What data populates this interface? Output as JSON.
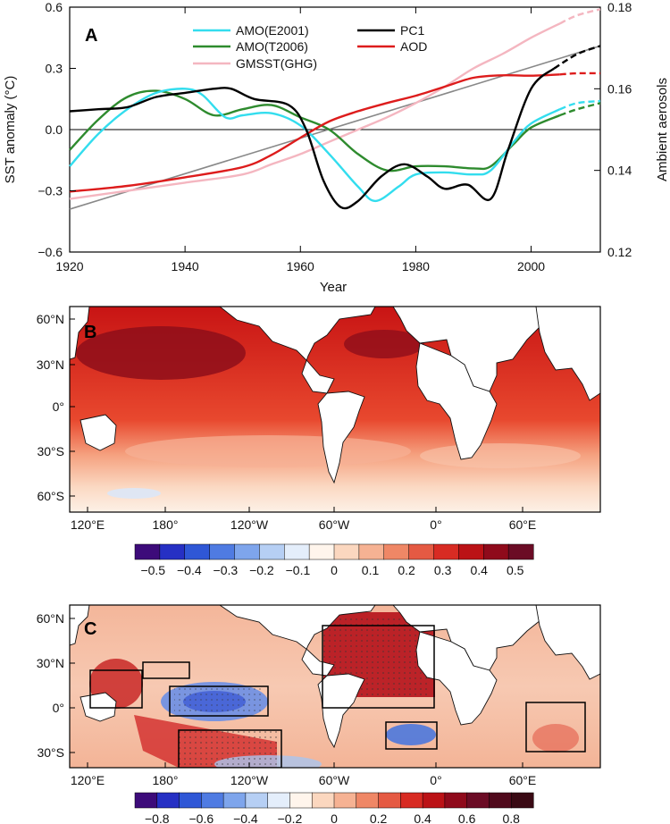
{
  "colors": {
    "amo_e2001": "#33ddee",
    "amo_t2006": "#2e8b2e",
    "gmsst": "#f4b6c0",
    "pc1": "#000000",
    "aod": "#dd1c1c",
    "trend": "#888888",
    "land": "#ffffff",
    "axis_right": "#dd1c1c"
  },
  "chart_data": [
    {
      "type": "line",
      "panel_label": "A",
      "xlabel": "Year",
      "ylabel": "SST anomaly (°C)",
      "ylabel_right": "Ambient aerosols",
      "xlim": [
        1920,
        2012
      ],
      "ylim": [
        -0.6,
        0.6
      ],
      "ylim_right": [
        0.12,
        0.18
      ],
      "x_ticks": [
        1920,
        1940,
        1960,
        1980,
        2000
      ],
      "y_ticks": [
        -0.6,
        -0.3,
        0.0,
        0.3,
        0.6
      ],
      "y_tick_labels": [
        "−0.6",
        "−0.3",
        "0.0",
        "0.3",
        "0.6"
      ],
      "y_ticks_right": [
        0.12,
        0.14,
        0.16,
        0.18
      ],
      "y_tick_labels_right": [
        "0.12",
        "0.14",
        "0.16",
        "0.18"
      ],
      "legend": {
        "left": [
          "AMO(E2001)",
          "AMO(T2006)",
          "GMSST(GHG)"
        ],
        "right": [
          "PC1",
          "AOD"
        ]
      },
      "series": [
        {
          "name": "AMO(E2001)",
          "axis": "left",
          "x": [
            1920,
            1925,
            1930,
            1935,
            1940,
            1943,
            1947,
            1950,
            1955,
            1960,
            1965,
            1970,
            1973,
            1977,
            1980,
            1985,
            1990,
            1993,
            1997,
            2000,
            2005
          ],
          "values": [
            -0.18,
            -0.02,
            0.1,
            0.18,
            0.2,
            0.17,
            0.06,
            0.07,
            0.08,
            0.02,
            -0.12,
            -0.28,
            -0.35,
            -0.28,
            -0.22,
            -0.21,
            -0.22,
            -0.2,
            -0.06,
            0.03,
            0.1
          ],
          "projected_x": [
            2005,
            2008,
            2012
          ],
          "projected_values": [
            0.1,
            0.13,
            0.14
          ]
        },
        {
          "name": "AMO(T2006)",
          "axis": "left",
          "x": [
            1920,
            1925,
            1930,
            1935,
            1940,
            1945,
            1950,
            1955,
            1960,
            1965,
            1970,
            1975,
            1980,
            1985,
            1990,
            1993,
            1997,
            2000,
            2005
          ],
          "values": [
            -0.1,
            0.05,
            0.16,
            0.19,
            0.15,
            0.07,
            0.1,
            0.12,
            0.06,
            0.0,
            -0.12,
            -0.2,
            -0.18,
            -0.18,
            -0.19,
            -0.18,
            -0.07,
            0.01,
            0.07
          ],
          "projected_x": [
            2005,
            2008,
            2012
          ],
          "projected_values": [
            0.07,
            0.1,
            0.13
          ]
        },
        {
          "name": "GMSST(GHG)",
          "axis": "left",
          "x": [
            1920,
            1930,
            1940,
            1950,
            1955,
            1960,
            1965,
            1970,
            1975,
            1980,
            1985,
            1990,
            1995,
            2000,
            2005
          ],
          "values": [
            -0.34,
            -0.3,
            -0.26,
            -0.22,
            -0.17,
            -0.12,
            -0.06,
            0.0,
            0.06,
            0.13,
            0.21,
            0.3,
            0.37,
            0.45,
            0.52
          ],
          "projected_x": [
            2005,
            2008,
            2012
          ],
          "projected_values": [
            0.52,
            0.56,
            0.59
          ]
        },
        {
          "name": "PC1",
          "axis": "left",
          "x": [
            1920,
            1925,
            1930,
            1935,
            1940,
            1945,
            1948,
            1952,
            1958,
            1961,
            1964,
            1967,
            1970,
            1974,
            1978,
            1982,
            1985,
            1989,
            1993,
            1996,
            2000,
            2004
          ],
          "values": [
            0.09,
            0.1,
            0.11,
            0.16,
            0.18,
            0.2,
            0.2,
            0.15,
            0.12,
            0.0,
            -0.25,
            -0.38,
            -0.35,
            -0.23,
            -0.17,
            -0.23,
            -0.29,
            -0.27,
            -0.34,
            -0.1,
            0.2,
            0.3
          ],
          "projected_x": [
            2004,
            2008,
            2012
          ],
          "projected_values": [
            0.3,
            0.37,
            0.41
          ]
        },
        {
          "name": "AOD",
          "axis": "right",
          "x": [
            1920,
            1930,
            1940,
            1950,
            1955,
            1960,
            1965,
            1970,
            1975,
            1980,
            1985,
            1990,
            1995,
            2000,
            2005
          ],
          "values": [
            0.1348,
            0.1362,
            0.1383,
            0.1408,
            0.1438,
            0.148,
            0.152,
            0.1545,
            0.1565,
            0.1583,
            0.1605,
            0.1627,
            0.1633,
            0.1632,
            0.1635
          ],
          "projected_x": [
            2005,
            2008,
            2012
          ],
          "projected_values": [
            0.1635,
            0.1638,
            0.1638
          ]
        },
        {
          "name": "Linear trend",
          "axis": "left",
          "x": [
            1920,
            2012
          ],
          "values": [
            -0.39,
            0.41
          ]
        }
      ]
    },
    {
      "type": "heatmap",
      "panel_label": "B",
      "lat_ticks": [
        "60°N",
        "30°N",
        "0°",
        "30°S",
        "60°S"
      ],
      "lon_ticks": [
        "120°E",
        "180°",
        "120°W",
        "60°W",
        "0°",
        "60°E"
      ],
      "colorbar_ticks": [
        "−0.5",
        "−0.4",
        "−0.3",
        "−0.2",
        "−0.1",
        "0",
        "0.1",
        "0.2",
        "0.3",
        "0.4",
        "0.5"
      ],
      "colorbar_range": [
        -0.55,
        0.55
      ],
      "pattern": "warming everywhere; strongest in North Pacific and North Atlantic (~0.5), weakest in Southern Ocean (~0)"
    },
    {
      "type": "heatmap",
      "panel_label": "C",
      "lat_ticks": [
        "60°N",
        "30°N",
        "0°",
        "30°S"
      ],
      "lon_ticks": [
        "120°E",
        "180°",
        "120°W",
        "60°W",
        "0°",
        "60°E"
      ],
      "colorbar_ticks": [
        "−0.8",
        "−0.6",
        "−0.4",
        "−0.2",
        "0",
        "0.2",
        "0.4",
        "0.6",
        "0.8"
      ],
      "colorbar_range": [
        -0.9,
        0.9
      ],
      "pattern": "strong positive North Atlantic and western Pacific, negative central equatorial Pacific and South Atlantic; boxes mark regions"
    }
  ]
}
